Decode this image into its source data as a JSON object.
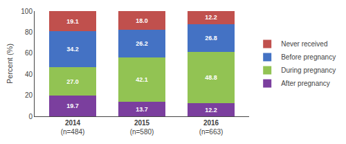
{
  "chart_data": {
    "type": "bar",
    "stacked": true,
    "categories": [
      "2014\n(n=484)",
      "2015\n(n=580)",
      "2016\n(n=663)"
    ],
    "series": [
      {
        "name": "After pregnancy",
        "color": "#7B3F9E",
        "values": [
          19.7,
          13.7,
          12.2
        ],
        "value_labels": [
          "19.7",
          "13.7",
          "12.2"
        ]
      },
      {
        "name": "During pregnancy",
        "color": "#92C353",
        "values": [
          27.0,
          42.1,
          48.8
        ],
        "value_labels": [
          "27.0",
          "42.1",
          "48.8"
        ]
      },
      {
        "name": "Before pregnancy",
        "color": "#4472C4",
        "values": [
          34.2,
          26.2,
          26.8
        ],
        "value_labels": [
          "34.2",
          "26.2",
          "26.8"
        ]
      },
      {
        "name": "Never received",
        "color": "#C0504D",
        "values": [
          19.1,
          18.0,
          12.2
        ],
        "value_labels": [
          "19.1",
          "18.0",
          "12.2"
        ]
      }
    ],
    "ylabel": "Percent (%)",
    "ylim": [
      0,
      100
    ],
    "yticks": [
      0,
      20,
      40,
      60,
      80,
      100
    ],
    "data_labels": true,
    "grid": false,
    "legend": "right"
  }
}
